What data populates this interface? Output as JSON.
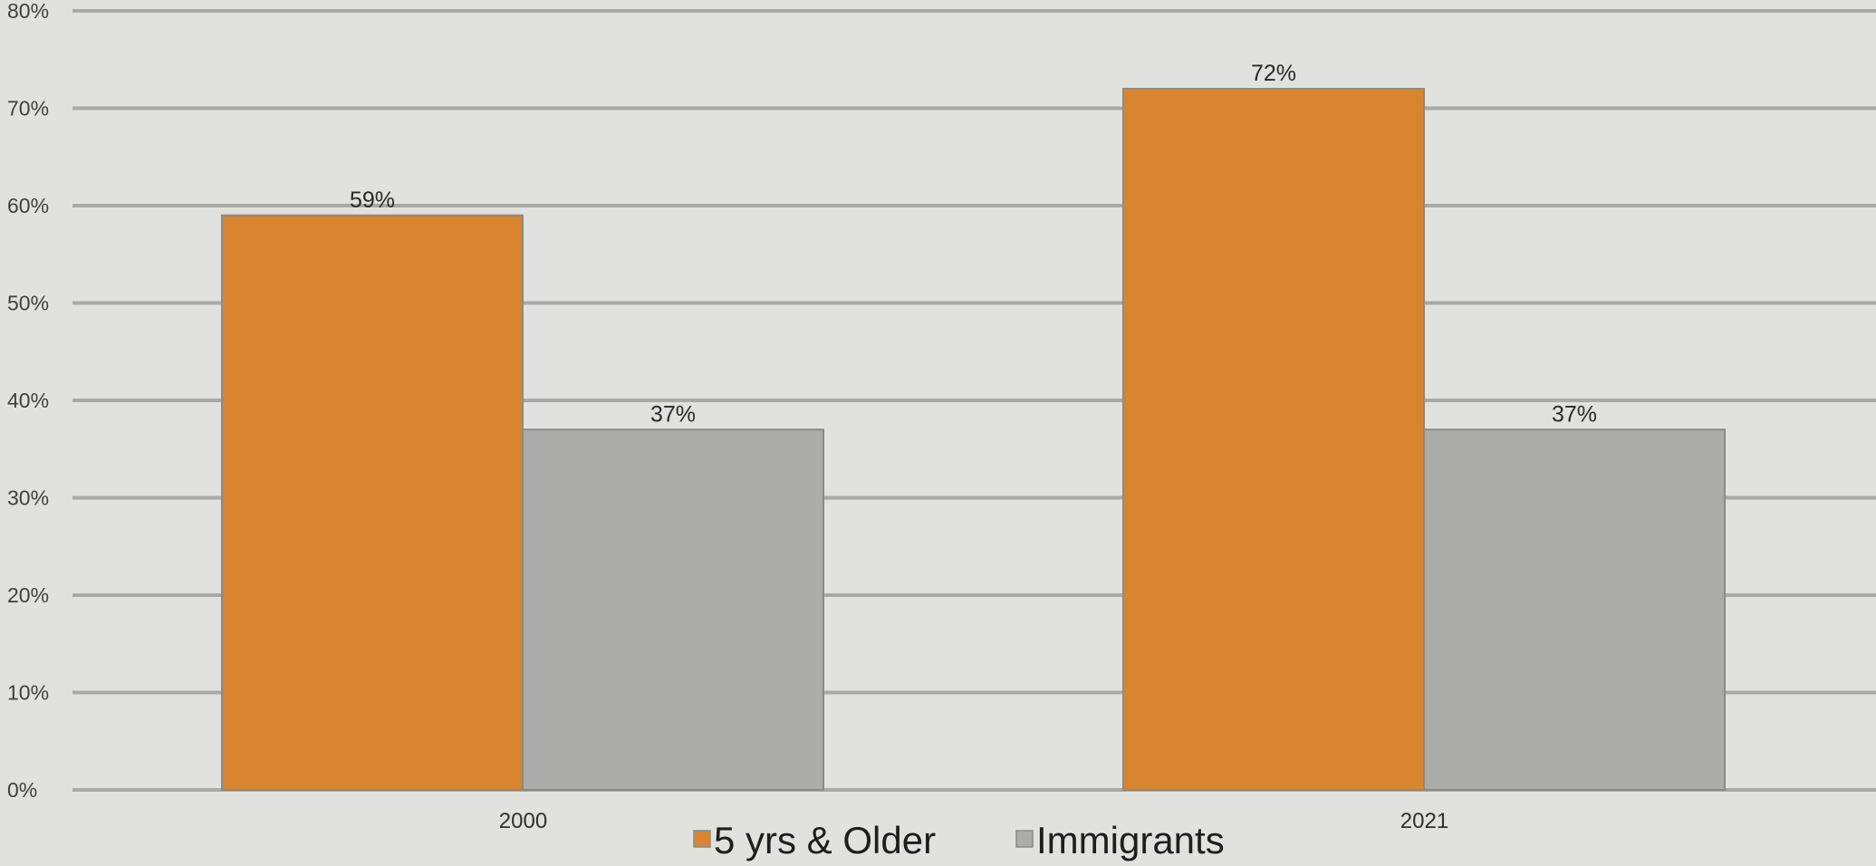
{
  "chart_data": {
    "type": "bar",
    "categories": [
      "2000",
      "2021"
    ],
    "series": [
      {
        "name": "5 yrs & Older",
        "values": [
          59,
          72
        ],
        "labels": [
          "59%",
          "72%"
        ],
        "color": "#d98530"
      },
      {
        "name": "Immigrants",
        "values": [
          37,
          37
        ],
        "labels": [
          "37%",
          "37%"
        ],
        "color": "#acaca8"
      }
    ],
    "ylim": [
      0,
      80
    ],
    "ytick_step": 10,
    "ytick_suffix": "%",
    "grid": true,
    "legend": "bottom-center",
    "title": "",
    "xlabel": "",
    "ylabel": ""
  }
}
